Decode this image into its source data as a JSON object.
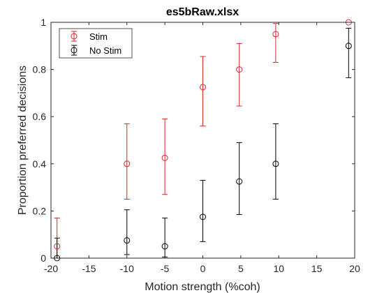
{
  "chart_data": {
    "type": "scatter",
    "title": "es5bRaw.xlsx",
    "xlabel": "Motion strength (%coh)",
    "ylabel": "Proportion preferred decisions",
    "xlim": [
      -20,
      20
    ],
    "ylim": [
      0,
      1
    ],
    "xticks": [
      -20,
      -15,
      -10,
      -5,
      0,
      5,
      10,
      15,
      20
    ],
    "yticks": [
      0,
      0.2,
      0.4,
      0.6,
      0.8,
      1
    ],
    "xtick_labels": [
      "-20",
      "-15",
      "-10",
      "-5",
      "0",
      "5",
      "10",
      "15",
      "20"
    ],
    "ytick_labels": [
      "0",
      "0.2",
      "0.4",
      "0.6",
      "0.8",
      "1"
    ],
    "grid": false,
    "legend_placement": "top-left",
    "series": [
      {
        "name": "Stim",
        "color": "#d62728",
        "marker": "circle",
        "x": [
          -19.2,
          -10,
          -5,
          0,
          4.8,
          9.6,
          19.2
        ],
        "y": [
          0.05,
          0.4,
          0.425,
          0.725,
          0.8,
          0.95,
          1.0
        ],
        "err_low": [
          0.0,
          0.25,
          0.27,
          0.56,
          0.645,
          0.83,
          1.0
        ],
        "err_high": [
          0.17,
          0.57,
          0.59,
          0.855,
          0.91,
          0.995,
          1.0
        ]
      },
      {
        "name": "No Stim",
        "color": "#000000",
        "marker": "circle",
        "x": [
          -19.2,
          -10,
          -5,
          0,
          4.8,
          9.6,
          19.2
        ],
        "y": [
          0.0,
          0.075,
          0.05,
          0.175,
          0.325,
          0.4,
          0.9
        ],
        "err_low": [
          0.0,
          0.015,
          0.005,
          0.07,
          0.185,
          0.25,
          0.765
        ],
        "err_high": [
          0.085,
          0.205,
          0.17,
          0.33,
          0.49,
          0.57,
          0.975
        ]
      }
    ]
  }
}
